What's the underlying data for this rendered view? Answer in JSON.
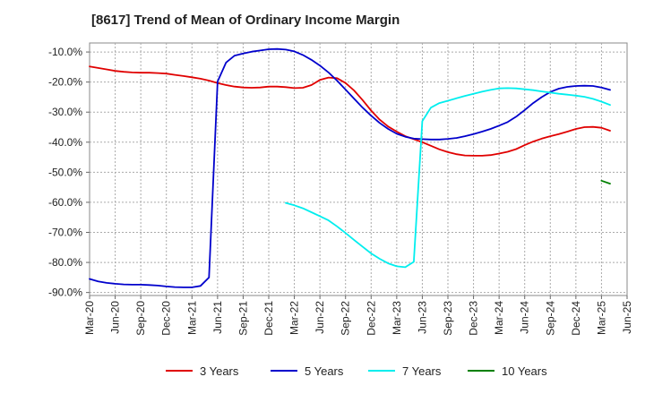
{
  "chart_data": {
    "type": "line",
    "title": "[8617]  Trend of Mean of Ordinary Income Margin",
    "xlabel": "",
    "ylabel": "",
    "x_ticks": [
      "Mar-20",
      "Jun-20",
      "Sep-20",
      "Dec-20",
      "Mar-21",
      "Jun-21",
      "Sep-21",
      "Dec-21",
      "Mar-22",
      "Jun-22",
      "Sep-22",
      "Dec-22",
      "Mar-23",
      "Jun-23",
      "Sep-23",
      "Dec-23",
      "Mar-24",
      "Jun-24",
      "Sep-24",
      "Dec-24",
      "Mar-25",
      "Jun-25"
    ],
    "y_ticks": [
      "-10.0%",
      "-20.0%",
      "-30.0%",
      "-40.0%",
      "-50.0%",
      "-60.0%",
      "-70.0%",
      "-80.0%",
      "-90.0%"
    ],
    "y_tick_values": [
      -10,
      -20,
      -30,
      -40,
      -50,
      -60,
      -70,
      -80,
      -90
    ],
    "ylim": [
      -91,
      -7
    ],
    "grid": true,
    "legend_position": "bottom",
    "series": [
      {
        "name": "3 Years",
        "color": "#e00000",
        "points": [
          [
            "2020-03",
            -14.8
          ],
          [
            "2020-04",
            -15.3
          ],
          [
            "2020-05",
            -15.8
          ],
          [
            "2020-06",
            -16.3
          ],
          [
            "2020-07",
            -16.6
          ],
          [
            "2020-08",
            -16.8
          ],
          [
            "2020-09",
            -16.9
          ],
          [
            "2020-10",
            -16.9
          ],
          [
            "2020-11",
            -17.0
          ],
          [
            "2020-12",
            -17.2
          ],
          [
            "2021-01",
            -17.6
          ],
          [
            "2021-02",
            -18.0
          ],
          [
            "2021-03",
            -18.4
          ],
          [
            "2021-04",
            -18.9
          ],
          [
            "2021-05",
            -19.5
          ],
          [
            "2021-06",
            -20.3
          ],
          [
            "2021-07",
            -21.0
          ],
          [
            "2021-08",
            -21.5
          ],
          [
            "2021-09",
            -21.8
          ],
          [
            "2021-10",
            -21.9
          ],
          [
            "2021-11",
            -21.8
          ],
          [
            "2021-12",
            -21.5
          ],
          [
            "2022-01",
            -21.5
          ],
          [
            "2022-02",
            -21.7
          ],
          [
            "2022-03",
            -22.0
          ],
          [
            "2022-04",
            -21.9
          ],
          [
            "2022-05",
            -21.0
          ],
          [
            "2022-06",
            -19.3
          ],
          [
            "2022-07",
            -18.5
          ],
          [
            "2022-08",
            -18.7
          ],
          [
            "2022-09",
            -20.3
          ],
          [
            "2022-10",
            -22.8
          ],
          [
            "2022-11",
            -26.0
          ],
          [
            "2022-12",
            -29.5
          ],
          [
            "2023-01",
            -32.5
          ],
          [
            "2023-02",
            -34.8
          ],
          [
            "2023-03",
            -36.5
          ],
          [
            "2023-04",
            -38.0
          ],
          [
            "2023-05",
            -39.0
          ],
          [
            "2023-06",
            -40.0
          ],
          [
            "2023-07",
            -41.2
          ],
          [
            "2023-08",
            -42.4
          ],
          [
            "2023-09",
            -43.3
          ],
          [
            "2023-10",
            -44.0
          ],
          [
            "2023-11",
            -44.4
          ],
          [
            "2023-12",
            -44.5
          ],
          [
            "2024-01",
            -44.5
          ],
          [
            "2024-02",
            -44.3
          ],
          [
            "2024-03",
            -43.8
          ],
          [
            "2024-04",
            -43.2
          ],
          [
            "2024-05",
            -42.3
          ],
          [
            "2024-06",
            -41.0
          ],
          [
            "2024-07",
            -39.8
          ],
          [
            "2024-08",
            -38.8
          ],
          [
            "2024-09",
            -38.0
          ],
          [
            "2024-10",
            -37.3
          ],
          [
            "2024-11",
            -36.5
          ],
          [
            "2024-12",
            -35.6
          ],
          [
            "2025-01",
            -35.0
          ],
          [
            "2025-02",
            -34.9
          ],
          [
            "2025-03",
            -35.2
          ],
          [
            "2025-04",
            -36.2
          ]
        ]
      },
      {
        "name": "5 Years",
        "color": "#0000cc",
        "points": [
          [
            "2020-03",
            -85.5
          ],
          [
            "2020-04",
            -86.3
          ],
          [
            "2020-05",
            -86.8
          ],
          [
            "2020-06",
            -87.1
          ],
          [
            "2020-07",
            -87.3
          ],
          [
            "2020-08",
            -87.4
          ],
          [
            "2020-09",
            -87.4
          ],
          [
            "2020-10",
            -87.5
          ],
          [
            "2020-11",
            -87.7
          ],
          [
            "2020-12",
            -88.0
          ],
          [
            "2021-01",
            -88.2
          ],
          [
            "2021-02",
            -88.3
          ],
          [
            "2021-03",
            -88.3
          ],
          [
            "2021-04",
            -87.8
          ],
          [
            "2021-05",
            -85.0
          ],
          [
            "2021-06",
            -19.8
          ],
          [
            "2021-07",
            -13.5
          ],
          [
            "2021-08",
            -11.2
          ],
          [
            "2021-09",
            -10.5
          ],
          [
            "2021-10",
            -9.9
          ],
          [
            "2021-11",
            -9.5
          ],
          [
            "2021-12",
            -9.1
          ],
          [
            "2022-01",
            -9.0
          ],
          [
            "2022-02",
            -9.2
          ],
          [
            "2022-03",
            -9.8
          ],
          [
            "2022-04",
            -11.0
          ],
          [
            "2022-05",
            -12.6
          ],
          [
            "2022-06",
            -14.5
          ],
          [
            "2022-07",
            -16.8
          ],
          [
            "2022-08",
            -19.5
          ],
          [
            "2022-09",
            -22.5
          ],
          [
            "2022-10",
            -25.5
          ],
          [
            "2022-11",
            -28.5
          ],
          [
            "2022-12",
            -31.2
          ],
          [
            "2023-01",
            -33.6
          ],
          [
            "2023-02",
            -35.6
          ],
          [
            "2023-03",
            -37.2
          ],
          [
            "2023-04",
            -38.2
          ],
          [
            "2023-05",
            -38.8
          ],
          [
            "2023-06",
            -39.0
          ],
          [
            "2023-07",
            -39.1
          ],
          [
            "2023-08",
            -39.1
          ],
          [
            "2023-09",
            -38.9
          ],
          [
            "2023-10",
            -38.6
          ],
          [
            "2023-11",
            -38.0
          ],
          [
            "2023-12",
            -37.3
          ],
          [
            "2024-01",
            -36.5
          ],
          [
            "2024-02",
            -35.6
          ],
          [
            "2024-03",
            -34.5
          ],
          [
            "2024-04",
            -33.3
          ],
          [
            "2024-05",
            -31.5
          ],
          [
            "2024-06",
            -29.3
          ],
          [
            "2024-07",
            -27.0
          ],
          [
            "2024-08",
            -25.0
          ],
          [
            "2024-09",
            -23.3
          ],
          [
            "2024-10",
            -22.2
          ],
          [
            "2024-11",
            -21.6
          ],
          [
            "2024-12",
            -21.3
          ],
          [
            "2025-01",
            -21.2
          ],
          [
            "2025-02",
            -21.3
          ],
          [
            "2025-03",
            -21.8
          ],
          [
            "2025-04",
            -22.6
          ]
        ]
      },
      {
        "name": "7 Years",
        "color": "#00eeee",
        "points": [
          [
            "2022-02",
            -60.2
          ],
          [
            "2022-03",
            -61.0
          ],
          [
            "2022-04",
            -62.0
          ],
          [
            "2022-05",
            -63.3
          ],
          [
            "2022-06",
            -64.6
          ],
          [
            "2022-07",
            -66.0
          ],
          [
            "2022-08",
            -68.0
          ],
          [
            "2022-09",
            -70.2
          ],
          [
            "2022-10",
            -72.5
          ],
          [
            "2022-11",
            -74.8
          ],
          [
            "2022-12",
            -77.0
          ],
          [
            "2023-01",
            -78.8
          ],
          [
            "2023-02",
            -80.3
          ],
          [
            "2023-03",
            -81.3
          ],
          [
            "2023-04",
            -81.6
          ],
          [
            "2023-05",
            -79.8
          ],
          [
            "2023-06",
            -33.0
          ],
          [
            "2023-07",
            -28.5
          ],
          [
            "2023-08",
            -27.0
          ],
          [
            "2023-09",
            -26.2
          ],
          [
            "2023-10",
            -25.4
          ],
          [
            "2023-11",
            -24.6
          ],
          [
            "2023-12",
            -23.9
          ],
          [
            "2024-01",
            -23.2
          ],
          [
            "2024-02",
            -22.6
          ],
          [
            "2024-03",
            -22.1
          ],
          [
            "2024-04",
            -22.0
          ],
          [
            "2024-05",
            -22.1
          ],
          [
            "2024-06",
            -22.4
          ],
          [
            "2024-07",
            -22.7
          ],
          [
            "2024-08",
            -23.1
          ],
          [
            "2024-09",
            -23.5
          ],
          [
            "2024-10",
            -23.9
          ],
          [
            "2024-11",
            -24.2
          ],
          [
            "2024-12",
            -24.5
          ],
          [
            "2025-01",
            -24.9
          ],
          [
            "2025-02",
            -25.6
          ],
          [
            "2025-03",
            -26.5
          ],
          [
            "2025-04",
            -27.6
          ]
        ]
      },
      {
        "name": "10 Years",
        "color": "#008000",
        "points": [
          [
            "2025-03",
            -52.8
          ],
          [
            "2025-04",
            -53.8
          ]
        ]
      }
    ]
  }
}
